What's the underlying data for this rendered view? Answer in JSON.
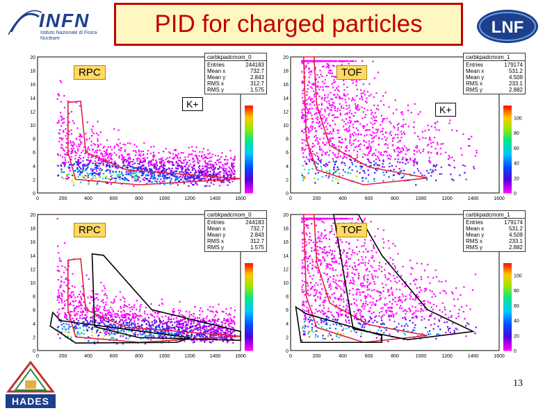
{
  "title": "PID for charged particles",
  "infn": {
    "logo": "INFN",
    "subtitle": "Istituto Nazionale di Fisica Nucleare"
  },
  "lnf": {
    "logo": "LNF"
  },
  "hades": {
    "logo": "HADES"
  },
  "page_number": "13",
  "panels": [
    {
      "label": "RPC",
      "k_label": "K+",
      "hist_name": "carbkpadcmom_0",
      "entries": "244183",
      "mean_x": "732.7",
      "mean_y": "2.843",
      "rms_x": "312.7",
      "rms_y": "1.575",
      "x_ticks": [
        "0",
        "200",
        "400",
        "600",
        "800",
        "1000",
        "1200",
        "1400",
        "1600"
      ],
      "y_ticks": [
        "0",
        "2",
        "4",
        "6",
        "8",
        "10",
        "12",
        "14",
        "16",
        "18",
        "20"
      ]
    },
    {
      "label": "TOF",
      "k_label": "K+",
      "hist_name": "carbkpadcmom_1",
      "entries": "179174",
      "mean_x": "531.2",
      "mean_y": "4.509",
      "rms_x": "233.1",
      "rms_y": "2.882",
      "x_ticks": [
        "0",
        "200",
        "400",
        "600",
        "800",
        "1000",
        "1200",
        "1400",
        "1600"
      ],
      "y_ticks": [
        "0",
        "2",
        "4",
        "6",
        "8",
        "10",
        "12",
        "14",
        "16",
        "18",
        "20"
      ],
      "z_ticks": [
        "0",
        "20",
        "40",
        "60",
        "80",
        "100"
      ]
    },
    {
      "label": "RPC",
      "hist_name": "carbkpadcmom_0",
      "entries": "244183",
      "mean_x": "732.7",
      "mean_y": "2.843",
      "rms_x": "312.7",
      "rms_y": "1.575",
      "x_ticks": [
        "0",
        "200",
        "400",
        "600",
        "800",
        "1000",
        "1200",
        "1400",
        "1600"
      ],
      "y_ticks": [
        "0",
        "2",
        "4",
        "6",
        "8",
        "10",
        "12",
        "14",
        "16",
        "18",
        "20"
      ]
    },
    {
      "label": "TOF",
      "hist_name": "carbkpadcmom_1",
      "entries": "179174",
      "mean_x": "531.2",
      "mean_y": "4.509",
      "rms_x": "233.1",
      "rms_y": "2.882",
      "x_ticks": [
        "0",
        "200",
        "400",
        "600",
        "800",
        "1000",
        "1200",
        "1400",
        "1600"
      ],
      "y_ticks": [
        "0",
        "2",
        "4",
        "6",
        "8",
        "10",
        "12",
        "14",
        "16",
        "18",
        "20"
      ],
      "z_ticks": [
        "0",
        "20",
        "40",
        "60",
        "80",
        "100"
      ]
    }
  ],
  "stat_labels": {
    "entries": "Entries",
    "mean_x": "Mean x",
    "mean_y": "Mean y",
    "rms_x": "RMS x",
    "rms_y": "RMS y"
  },
  "colors": {
    "title": "#c00000",
    "title_bg": "#fff7c2",
    "cut": "#e0203a",
    "cut2": "#000000"
  }
}
